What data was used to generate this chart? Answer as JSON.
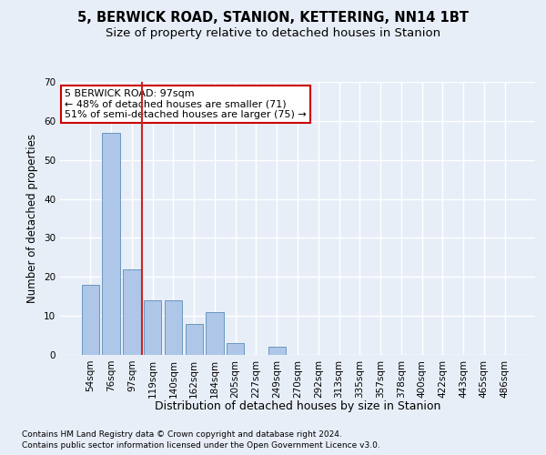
{
  "title1": "5, BERWICK ROAD, STANION, KETTERING, NN14 1BT",
  "title2": "Size of property relative to detached houses in Stanion",
  "xlabel": "Distribution of detached houses by size in Stanion",
  "ylabel": "Number of detached properties",
  "categories": [
    "54sqm",
    "76sqm",
    "97sqm",
    "119sqm",
    "140sqm",
    "162sqm",
    "184sqm",
    "205sqm",
    "227sqm",
    "249sqm",
    "270sqm",
    "292sqm",
    "313sqm",
    "335sqm",
    "357sqm",
    "378sqm",
    "400sqm",
    "422sqm",
    "443sqm",
    "465sqm",
    "486sqm"
  ],
  "values": [
    18,
    57,
    22,
    14,
    14,
    8,
    11,
    3,
    0,
    2,
    0,
    0,
    0,
    0,
    0,
    0,
    0,
    0,
    0,
    0,
    0
  ],
  "bar_color": "#aec6e8",
  "bar_edge_color": "#5b8db8",
  "red_line_x": 2.5,
  "ylim": [
    0,
    70
  ],
  "yticks": [
    0,
    10,
    20,
    30,
    40,
    50,
    60,
    70
  ],
  "annotation_text": "5 BERWICK ROAD: 97sqm\n← 48% of detached houses are smaller (71)\n51% of semi-detached houses are larger (75) →",
  "annotation_box_color": "#ffffff",
  "annotation_box_edgecolor": "#cc0000",
  "footer1": "Contains HM Land Registry data © Crown copyright and database right 2024.",
  "footer2": "Contains public sector information licensed under the Open Government Licence v3.0.",
  "bg_color": "#e8eef8",
  "plot_bg_color": "#e8eef8",
  "grid_color": "#ffffff",
  "title1_fontsize": 10.5,
  "title2_fontsize": 9.5,
  "xlabel_fontsize": 9,
  "ylabel_fontsize": 8.5,
  "tick_fontsize": 7.5,
  "annotation_fontsize": 8,
  "footer_fontsize": 6.5
}
